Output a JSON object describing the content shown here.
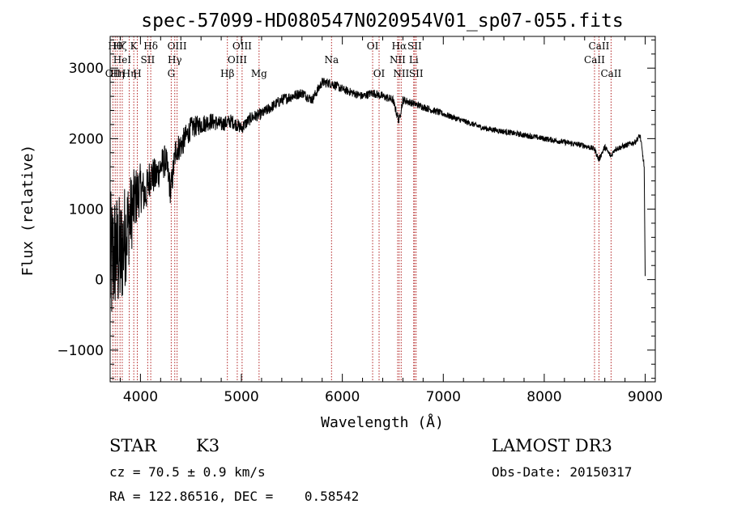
{
  "chart_data": {
    "type": "line",
    "title": "spec-57099-HD080547N020954V01_sp07-055.fits",
    "xlabel": "Wavelength (Å)",
    "ylabel": "Flux (relative)",
    "xlim": [
      3700,
      9100
    ],
    "ylim": [
      -1450,
      3450
    ],
    "x_ticks": [
      4000,
      5000,
      6000,
      7000,
      8000,
      9000
    ],
    "y_ticks": [
      -1000,
      0,
      1000,
      2000,
      3000
    ],
    "x_tick_labels": [
      "4000",
      "5000",
      "6000",
      "7000",
      "8000",
      "9000"
    ],
    "y_tick_labels": [
      "−1000",
      "0",
      "1000",
      "2000",
      "3000"
    ],
    "line_color": "#000000",
    "marker_color": "#b22222",
    "spectrum": {
      "x": [
        3700,
        3750,
        3800,
        3850,
        3900,
        3950,
        4000,
        4050,
        4100,
        4150,
        4200,
        4250,
        4300,
        4350,
        4400,
        4500,
        4600,
        4700,
        4800,
        4900,
        5000,
        5100,
        5200,
        5300,
        5400,
        5500,
        5600,
        5700,
        5800,
        5900,
        6000,
        6100,
        6200,
        6300,
        6400,
        6500,
        6560,
        6600,
        6700,
        6800,
        6900,
        7000,
        7200,
        7400,
        7600,
        7800,
        8000,
        8200,
        8400,
        8500,
        8540,
        8600,
        8660,
        8700,
        8800,
        8900,
        8950,
        8990,
        9000
      ],
      "y": [
        150,
        400,
        300,
        650,
        900,
        1150,
        1300,
        1200,
        1500,
        1450,
        1600,
        1700,
        1250,
        1850,
        1900,
        2150,
        2200,
        2250,
        2200,
        2250,
        2150,
        2300,
        2350,
        2450,
        2550,
        2600,
        2650,
        2550,
        2800,
        2780,
        2700,
        2650,
        2600,
        2650,
        2600,
        2550,
        2250,
        2550,
        2500,
        2450,
        2400,
        2350,
        2250,
        2150,
        2100,
        2050,
        2000,
        1950,
        1900,
        1850,
        1700,
        1880,
        1750,
        1850,
        1900,
        1950,
        2050,
        1600,
        50
      ]
    },
    "noise_amplitude": [
      1100,
      900,
      900,
      750,
      600,
      450,
      350,
      300,
      280,
      260,
      250,
      230,
      220,
      200,
      200,
      160,
      140,
      120,
      110,
      100,
      90,
      90,
      80,
      80,
      80,
      80,
      70,
      70,
      70,
      70,
      60,
      60,
      60,
      60,
      60,
      60,
      60,
      60,
      50,
      50,
      50,
      45,
      40,
      40,
      40,
      40,
      40,
      40,
      40,
      40,
      40,
      40,
      40,
      40,
      40,
      40,
      40,
      40,
      0
    ],
    "lines": [
      {
        "wl": 3727,
        "label": "OII",
        "row": 3
      },
      {
        "wl": 3750,
        "label": "Hθ",
        "row": 1
      },
      {
        "wl": 3771,
        "label": "Hη",
        "row": 3
      },
      {
        "wl": 3798,
        "label": "Hζ",
        "row": 1
      },
      {
        "wl": 3820,
        "label": "HeI",
        "row": 2
      },
      {
        "wl": 3889,
        "label": "Hη",
        "row": 3
      },
      {
        "wl": 3934,
        "label": "K",
        "row": 1
      },
      {
        "wl": 3969,
        "label": "H",
        "row": 3
      },
      {
        "wl": 4072,
        "label": "SII",
        "row": 2
      },
      {
        "wl": 4102,
        "label": "Hδ",
        "row": 1
      },
      {
        "wl": 4305,
        "label": "G",
        "row": 3
      },
      {
        "wl": 4340,
        "label": "Hγ",
        "row": 2
      },
      {
        "wl": 4363,
        "label": "OIII",
        "row": 1
      },
      {
        "wl": 4861,
        "label": "Hβ",
        "row": 3
      },
      {
        "wl": 4959,
        "label": "OIII",
        "row": 2
      },
      {
        "wl": 5007,
        "label": "OIII",
        "row": 1
      },
      {
        "wl": 5175,
        "label": "Mg",
        "row": 3
      },
      {
        "wl": 5893,
        "label": "Na",
        "row": 2
      },
      {
        "wl": 6300,
        "label": "OI",
        "row": 1
      },
      {
        "wl": 6364,
        "label": "OI",
        "row": 3
      },
      {
        "wl": 6548,
        "label": "NII",
        "row": 2
      },
      {
        "wl": 6563,
        "label": "Hα",
        "row": 1
      },
      {
        "wl": 6583,
        "label": "NII",
        "row": 3
      },
      {
        "wl": 6707,
        "label": "Li",
        "row": 2
      },
      {
        "wl": 6716,
        "label": "SII",
        "row": 1
      },
      {
        "wl": 6731,
        "label": "SII",
        "row": 3
      },
      {
        "wl": 8498,
        "label": "CaII",
        "row": 2
      },
      {
        "wl": 8542,
        "label": "CaII",
        "row": 1
      },
      {
        "wl": 8662,
        "label": "CaII",
        "row": 3
      }
    ]
  },
  "info": {
    "class": "STAR",
    "subclass": "K3",
    "survey": "LAMOST DR3",
    "cz": "cz = 70.5 ± 0.9 km/s",
    "obs_date": "Obs-Date: 20150317",
    "coords": "RA = 122.86516, DEC =    0.58542"
  }
}
